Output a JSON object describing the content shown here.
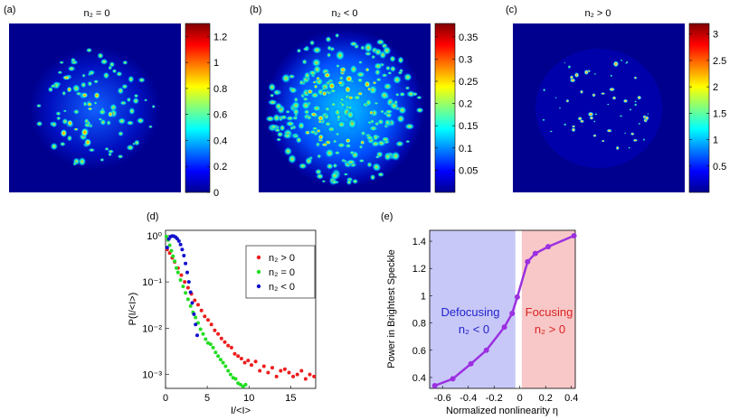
{
  "panels": {
    "a": {
      "label": "(a)",
      "title": "n₂ = 0",
      "colorbar_ticks": [
        "0",
        "0.2",
        "0.4",
        "0.6",
        "0.8",
        "1",
        "1.2"
      ]
    },
    "b": {
      "label": "(b)",
      "title": "n₂ < 0",
      "colorbar_ticks": [
        "0.05",
        "0.1",
        "0.15",
        "0.2",
        "0.25",
        "0.3",
        "0.35"
      ]
    },
    "c": {
      "label": "(c)",
      "title": "n₂ > 0",
      "colorbar_ticks": [
        "0.5",
        "1",
        "1.5",
        "2",
        "2.5",
        "3"
      ]
    }
  },
  "chart_data": [
    {
      "id": "a",
      "type": "heatmap",
      "title": "n₂ = 0",
      "colorbar_range": [
        0,
        1.3
      ],
      "colorbar_ticks": [
        0,
        0.2,
        0.4,
        0.6,
        0.8,
        1,
        1.2
      ]
    },
    {
      "id": "b",
      "type": "heatmap",
      "title": "n₂ < 0",
      "colorbar_range": [
        0,
        0.38
      ],
      "colorbar_ticks": [
        0.05,
        0.1,
        0.15,
        0.2,
        0.25,
        0.3,
        0.35
      ]
    },
    {
      "id": "c",
      "type": "heatmap",
      "title": "n₂ > 0",
      "colorbar_range": [
        0,
        3.2
      ],
      "colorbar_ticks": [
        0.5,
        1,
        1.5,
        2,
        2.5,
        3
      ]
    },
    {
      "id": "d",
      "type": "scatter",
      "label": "(d)",
      "xlabel": "I/<I>",
      "ylabel": "P(I/<I>)",
      "yscale": "log",
      "xlim": [
        0,
        18
      ],
      "ylim": [
        0.0005,
        1.3
      ],
      "xticks": [
        0,
        5,
        10,
        15
      ],
      "yticks": [
        "10⁰",
        "10⁻¹",
        "10⁻²",
        "10⁻³"
      ],
      "legend_position": "top-right",
      "series": [
        {
          "name": "n₂ > 0",
          "color": "#ee1c1c",
          "x": [
            0.2,
            0.5,
            0.8,
            1.1,
            1.5,
            1.9,
            2.3,
            2.7,
            3.1,
            3.5,
            3.9,
            4.3,
            4.7,
            5.1,
            5.5,
            5.9,
            6.3,
            6.7,
            7.1,
            7.5,
            7.9,
            8.3,
            8.7,
            9.1,
            9.5,
            9.9,
            10.3,
            10.8,
            11.3,
            11.8,
            12.3,
            12.8,
            13.3,
            13.8,
            14.3,
            14.8,
            15.3,
            15.8,
            16.3,
            16.8,
            17.3,
            17.8
          ],
          "y": [
            0.5,
            0.42,
            0.33,
            0.27,
            0.2,
            0.14,
            0.1,
            0.075,
            0.055,
            0.04,
            0.032,
            0.024,
            0.018,
            0.015,
            0.012,
            0.009,
            0.0075,
            0.006,
            0.005,
            0.0042,
            0.0038,
            0.0028,
            0.0025,
            0.0022,
            0.0018,
            0.002,
            0.0016,
            0.0019,
            0.0012,
            0.0015,
            0.0011,
            0.0014,
            0.0009,
            0.0012,
            0.0013,
            0.0011,
            0.0009,
            0.001,
            0.0012,
            0.0008,
            0.001,
            0.0009
          ]
        },
        {
          "name": "n₂ = 0",
          "color": "#22dd22",
          "x": [
            0.1,
            0.3,
            0.5,
            0.7,
            0.9,
            1.1,
            1.3,
            1.5,
            1.8,
            2.1,
            2.4,
            2.7,
            3.0,
            3.3,
            3.6,
            3.9,
            4.2,
            4.5,
            4.8,
            5.1,
            5.4,
            5.7,
            6.0,
            6.3,
            6.6,
            6.9,
            7.2,
            7.5,
            7.8,
            8.1,
            8.4,
            8.7,
            9.0,
            9.3,
            9.6
          ],
          "y": [
            0.95,
            0.8,
            0.62,
            0.47,
            0.36,
            0.28,
            0.2,
            0.16,
            0.11,
            0.08,
            0.058,
            0.042,
            0.03,
            0.022,
            0.017,
            0.013,
            0.0095,
            0.0075,
            0.0058,
            0.0048,
            0.0045,
            0.0038,
            0.003,
            0.0025,
            0.0021,
            0.0018,
            0.0015,
            0.0012,
            0.001,
            0.00085,
            0.0008,
            0.00065,
            0.0006,
            0.00055,
            0.0006
          ]
        },
        {
          "name": "n₂ < 0",
          "color": "#1111cc",
          "x": [
            0.2,
            0.4,
            0.6,
            0.8,
            1.0,
            1.2,
            1.4,
            1.6,
            1.8,
            2.0,
            2.2,
            2.4,
            2.6,
            2.8,
            3.0,
            3.2,
            3.4,
            3.6,
            3.8
          ],
          "y": [
            0.55,
            0.85,
            0.95,
            0.98,
            0.97,
            0.93,
            0.86,
            0.76,
            0.64,
            0.5,
            0.37,
            0.25,
            0.16,
            0.1,
            0.06,
            0.035,
            0.02,
            0.012,
            0.007
          ]
        }
      ]
    },
    {
      "id": "e",
      "type": "line",
      "label": "(e)",
      "xlabel": "Normalized nonlinearity η",
      "ylabel": "Power in Brightest Speckle",
      "xlim": [
        -0.7,
        0.43
      ],
      "ylim": [
        0.32,
        1.48
      ],
      "xticks": [
        -0.6,
        -0.4,
        -0.2,
        0,
        0.2,
        0.4
      ],
      "yticks": [
        0.4,
        0.6,
        0.8,
        1,
        1.2,
        1.4
      ],
      "series": [
        {
          "name": "power",
          "color": "#9b30e0",
          "x": [
            -0.66,
            -0.52,
            -0.38,
            -0.26,
            -0.12,
            -0.06,
            -0.02,
            0.06,
            0.12,
            0.22,
            0.42
          ],
          "y": [
            0.34,
            0.39,
            0.5,
            0.6,
            0.77,
            0.87,
            0.99,
            1.25,
            1.31,
            1.36,
            1.44
          ]
        }
      ],
      "regions": [
        {
          "label": "Defocusing",
          "sublabel": "n₂ < 0",
          "from": -0.7,
          "to": -0.035,
          "color": "#c8c8f8",
          "text_color": "#2222cc"
        },
        {
          "label": "Focusing",
          "sublabel": "n₂ > 0",
          "from": 0.015,
          "to": 0.43,
          "color": "#f8c8c8",
          "text_color": "#dd2222"
        }
      ]
    }
  ],
  "plot_d": {
    "label": "(d)",
    "xlabel": "I/<I>",
    "ylabel": "P(I/<I>)",
    "xtick_labels": [
      "0",
      "5",
      "10",
      "15"
    ],
    "ytick_labels": [
      "10⁰",
      "10⁻¹",
      "10⁻²",
      "10⁻³"
    ],
    "legend": [
      "n₂ > 0",
      "n₂ = 0",
      "n₂ < 0"
    ]
  },
  "plot_e": {
    "label": "(e)",
    "xlabel": "Normalized nonlinearity η",
    "ylabel": "Power in Brightest Speckle",
    "xtick_labels": [
      "-0.6",
      "-0.4",
      "-0.2",
      "0",
      "0.2",
      "0.4"
    ],
    "ytick_labels": [
      "0.4",
      "0.6",
      "0.8",
      "1",
      "1.2",
      "1.4"
    ],
    "left_region": {
      "title": "Defocusing",
      "sub": "n₂ < 0"
    },
    "right_region": {
      "title": "Focusing",
      "sub": "n₂ > 0"
    }
  }
}
